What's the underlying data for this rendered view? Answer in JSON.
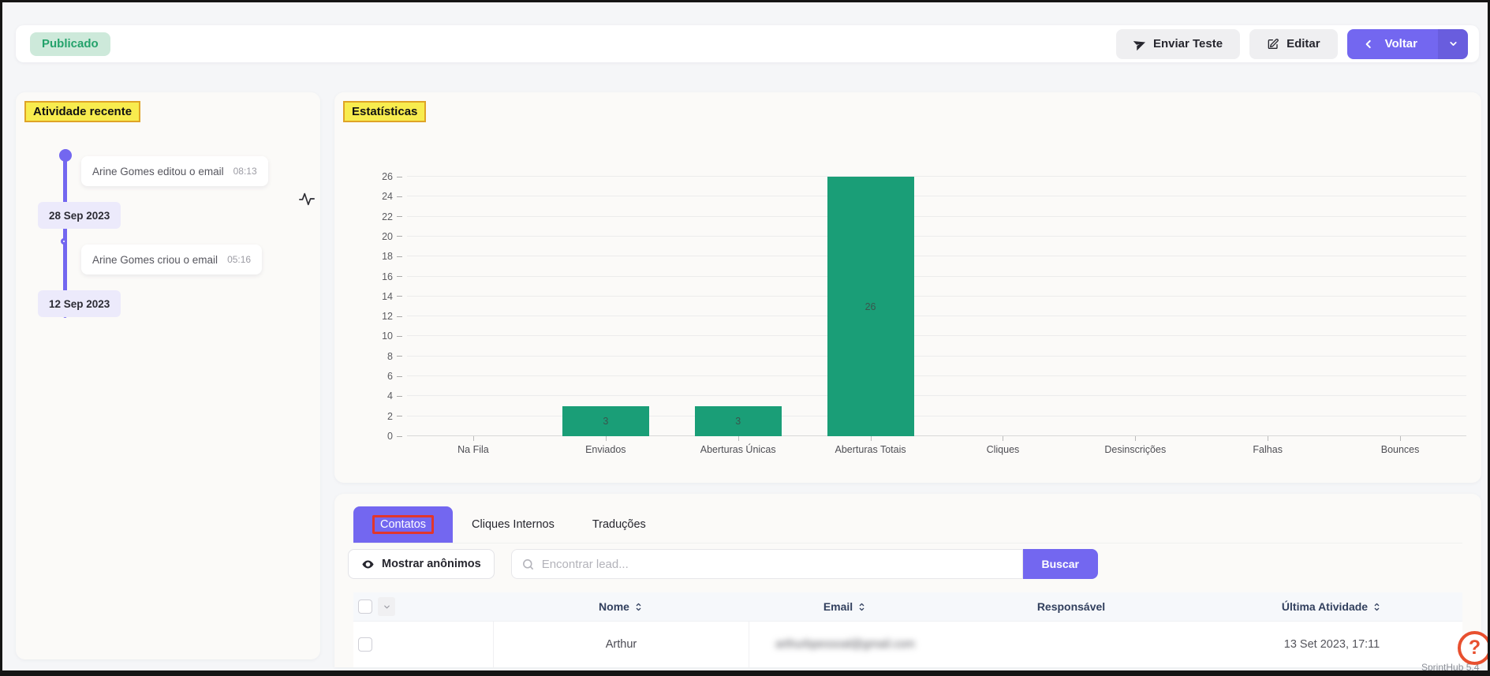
{
  "colors": {
    "accent_purple": "#7367f0",
    "accent_purple_dark": "#695dde",
    "published_bg": "#cde9da",
    "published_text": "#24a26b",
    "date_badge_bg": "#eceafb",
    "annotation_yellow_bg": "#f8ec4e",
    "annotation_yellow_border": "#dfa427",
    "annotation_red": "#e2362b",
    "help_orange": "#e8502f"
  },
  "topbar": {
    "status_badge": "Publicado",
    "send_test_label": "Enviar Teste",
    "edit_label": "Editar",
    "back_label": "Voltar"
  },
  "activity_panel": {
    "title": "Atividade recente",
    "events": [
      {
        "text": "Arine Gomes editou o email",
        "time": "08:13",
        "date_badge": "28 Sep 2023"
      },
      {
        "text": "Arine Gomes criou o email",
        "time": "05:16",
        "date_badge": "12 Sep 2023"
      }
    ]
  },
  "stats_panel": {
    "title": "Estatísticas"
  },
  "chart_data": {
    "type": "bar",
    "categories": [
      "Na Fila",
      "Enviados",
      "Aberturas Únicas",
      "Aberturas Totais",
      "Cliques",
      "Desinscrições",
      "Falhas",
      "Bounces"
    ],
    "values": [
      0,
      3,
      3,
      26,
      0,
      0,
      0,
      0
    ],
    "title": "",
    "xlabel": "",
    "ylabel": "",
    "ylim": [
      0,
      26
    ],
    "ytick_step": 2,
    "grid": true,
    "legend": false,
    "bar_color": "#1a9e77"
  },
  "contacts_panel": {
    "tabs": [
      {
        "label": "Contatos",
        "active": true
      },
      {
        "label": "Cliques Internos",
        "active": false
      },
      {
        "label": "Traduções",
        "active": false
      }
    ],
    "show_anonymous_label": "Mostrar anônimos",
    "search": {
      "placeholder": "Encontrar lead...",
      "value": ""
    },
    "search_button_label": "Buscar",
    "table": {
      "columns": [
        {
          "label": "Nome",
          "sortable": true
        },
        {
          "label": "Email",
          "sortable": true
        },
        {
          "label": "Responsável",
          "sortable": false
        },
        {
          "label": "Última Atividade",
          "sortable": true
        }
      ],
      "rows": [
        {
          "nome": "Arthur",
          "email": "arthurbpessoal@gmail.com",
          "responsavel": "",
          "ultima_atividade": "13 Set 2023, 17:11"
        }
      ]
    }
  },
  "help_widget": {
    "glyph": "?"
  },
  "footer": {
    "version_label": "SprintHub 5.4"
  }
}
